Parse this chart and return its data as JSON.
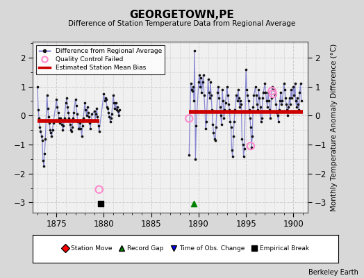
{
  "title": "GEORGETOWN,PE",
  "subtitle": "Difference of Station Temperature Data from Regional Average",
  "ylabel": "Monthly Temperature Anomaly Difference (°C)",
  "credit": "Berkeley Earth",
  "xlim": [
    1872.5,
    1901.5
  ],
  "ylim": [
    -3.35,
    2.55
  ],
  "yticks": [
    -3,
    -2,
    -1,
    0,
    1,
    2
  ],
  "xticks": [
    1875,
    1880,
    1885,
    1890,
    1895,
    1900
  ],
  "plot_bg": "#f0f0f0",
  "fig_bg": "#d8d8d8",
  "segment1_bias": -0.18,
  "segment1_x_start": 1873.0,
  "segment1_x_end": 1879.5,
  "segment2_bias": 0.12,
  "segment2_x_start": 1889.0,
  "segment2_x_end": 1901.0,
  "empirical_break_x": 1879.7,
  "empirical_break_y": -3.05,
  "record_gap_x": 1889.5,
  "record_gap_y": -3.05,
  "segment1_data": [
    [
      1873.0,
      1.0
    ],
    [
      1873.08,
      0.2
    ],
    [
      1873.17,
      -0.1
    ],
    [
      1873.25,
      -0.4
    ],
    [
      1873.33,
      -0.55
    ],
    [
      1873.42,
      -0.7
    ],
    [
      1873.5,
      -0.85
    ],
    [
      1873.58,
      -1.55
    ],
    [
      1873.67,
      -1.75
    ],
    [
      1873.75,
      -1.3
    ],
    [
      1873.83,
      -0.8
    ],
    [
      1874.0,
      0.7
    ],
    [
      1874.08,
      0.25
    ],
    [
      1874.17,
      -0.05
    ],
    [
      1874.25,
      -0.25
    ],
    [
      1874.33,
      -0.5
    ],
    [
      1874.42,
      -0.6
    ],
    [
      1874.5,
      -0.7
    ],
    [
      1874.58,
      -0.5
    ],
    [
      1874.67,
      -0.25
    ],
    [
      1875.0,
      0.55
    ],
    [
      1875.08,
      0.3
    ],
    [
      1875.17,
      0.1
    ],
    [
      1875.25,
      -0.1
    ],
    [
      1875.33,
      -0.25
    ],
    [
      1875.42,
      -0.1
    ],
    [
      1875.5,
      -0.15
    ],
    [
      1875.58,
      -0.3
    ],
    [
      1875.67,
      -0.5
    ],
    [
      1875.75,
      -0.35
    ],
    [
      1875.83,
      -0.1
    ],
    [
      1876.0,
      0.45
    ],
    [
      1876.08,
      0.6
    ],
    [
      1876.17,
      0.3
    ],
    [
      1876.25,
      0.1
    ],
    [
      1876.33,
      -0.1
    ],
    [
      1876.42,
      -0.3
    ],
    [
      1876.5,
      -0.5
    ],
    [
      1876.58,
      -0.55
    ],
    [
      1876.67,
      -0.4
    ],
    [
      1876.75,
      -0.1
    ],
    [
      1876.83,
      0.1
    ],
    [
      1877.0,
      0.55
    ],
    [
      1877.08,
      0.35
    ],
    [
      1877.17,
      0.05
    ],
    [
      1877.25,
      -0.2
    ],
    [
      1877.33,
      -0.45
    ],
    [
      1877.42,
      -0.45
    ],
    [
      1877.5,
      -0.25
    ],
    [
      1877.58,
      -0.45
    ],
    [
      1877.67,
      -0.7
    ],
    [
      1877.75,
      -0.35
    ],
    [
      1877.83,
      -0.1
    ],
    [
      1878.0,
      0.45
    ],
    [
      1878.08,
      0.2
    ],
    [
      1878.17,
      0.0
    ],
    [
      1878.25,
      0.3
    ],
    [
      1878.33,
      0.1
    ],
    [
      1878.42,
      -0.05
    ],
    [
      1878.5,
      -0.25
    ],
    [
      1878.58,
      -0.45
    ],
    [
      1878.67,
      -0.15
    ],
    [
      1878.75,
      0.05
    ],
    [
      1879.0,
      0.15
    ],
    [
      1879.08,
      -0.15
    ],
    [
      1879.17,
      0.05
    ],
    [
      1879.25,
      0.25
    ],
    [
      1879.33,
      -0.05
    ],
    [
      1879.42,
      -0.35
    ],
    [
      1879.5,
      -0.55
    ],
    [
      1880.0,
      0.75
    ],
    [
      1880.08,
      0.5
    ],
    [
      1880.17,
      0.6
    ],
    [
      1880.25,
      0.55
    ],
    [
      1880.33,
      0.3
    ],
    [
      1880.42,
      0.25
    ],
    [
      1880.5,
      0.1
    ],
    [
      1880.58,
      -0.05
    ],
    [
      1880.67,
      -0.2
    ],
    [
      1880.75,
      -0.1
    ],
    [
      1880.83,
      0.05
    ],
    [
      1881.0,
      0.7
    ],
    [
      1881.08,
      0.45
    ],
    [
      1881.17,
      0.25
    ],
    [
      1881.25,
      0.45
    ],
    [
      1881.33,
      0.2
    ],
    [
      1881.42,
      0.3
    ],
    [
      1881.5,
      0.15
    ],
    [
      1881.58,
      0.0
    ],
    [
      1881.67,
      0.2
    ]
  ],
  "segment2_data": [
    [
      1889.0,
      -1.35
    ],
    [
      1889.17,
      1.1
    ],
    [
      1889.25,
      0.9
    ],
    [
      1889.33,
      0.85
    ],
    [
      1889.42,
      1.0
    ],
    [
      1889.5,
      0.5
    ],
    [
      1889.58,
      2.25
    ],
    [
      1889.67,
      -1.5
    ],
    [
      1889.75,
      -0.35
    ],
    [
      1889.83,
      0.15
    ],
    [
      1890.0,
      1.15
    ],
    [
      1890.08,
      1.4
    ],
    [
      1890.17,
      1.0
    ],
    [
      1890.25,
      1.3
    ],
    [
      1890.33,
      0.8
    ],
    [
      1890.42,
      1.15
    ],
    [
      1890.5,
      1.4
    ],
    [
      1890.58,
      0.7
    ],
    [
      1890.67,
      0.15
    ],
    [
      1890.75,
      -0.45
    ],
    [
      1890.83,
      -0.2
    ],
    [
      1891.0,
      1.25
    ],
    [
      1891.08,
      0.8
    ],
    [
      1891.17,
      0.6
    ],
    [
      1891.25,
      1.15
    ],
    [
      1891.33,
      0.7
    ],
    [
      1891.42,
      0.2
    ],
    [
      1891.5,
      -0.3
    ],
    [
      1891.58,
      -0.6
    ],
    [
      1891.67,
      -0.8
    ],
    [
      1891.75,
      -0.85
    ],
    [
      1891.83,
      -0.4
    ],
    [
      1892.0,
      0.8
    ],
    [
      1892.08,
      1.0
    ],
    [
      1892.17,
      0.6
    ],
    [
      1892.25,
      0.3
    ],
    [
      1892.33,
      0.0
    ],
    [
      1892.42,
      -0.3
    ],
    [
      1892.5,
      0.9
    ],
    [
      1892.58,
      0.5
    ],
    [
      1892.67,
      -0.1
    ],
    [
      1892.75,
      0.2
    ],
    [
      1892.83,
      0.45
    ],
    [
      1893.0,
      1.0
    ],
    [
      1893.08,
      0.7
    ],
    [
      1893.17,
      0.4
    ],
    [
      1893.25,
      0.2
    ],
    [
      1893.33,
      -0.2
    ],
    [
      1893.42,
      -0.4
    ],
    [
      1893.5,
      -1.2
    ],
    [
      1893.58,
      -1.4
    ],
    [
      1893.67,
      -0.7
    ],
    [
      1893.75,
      -0.2
    ],
    [
      1893.83,
      0.2
    ],
    [
      1894.0,
      0.7
    ],
    [
      1894.08,
      0.5
    ],
    [
      1894.17,
      0.9
    ],
    [
      1894.25,
      0.6
    ],
    [
      1894.33,
      0.3
    ],
    [
      1894.42,
      0.5
    ],
    [
      1894.5,
      0.4
    ],
    [
      1894.58,
      -0.8
    ],
    [
      1894.67,
      -1.0
    ],
    [
      1894.75,
      -1.4
    ],
    [
      1894.83,
      -1.15
    ],
    [
      1895.0,
      1.6
    ],
    [
      1895.08,
      0.9
    ],
    [
      1895.17,
      0.7
    ],
    [
      1895.25,
      0.5
    ],
    [
      1895.33,
      0.2
    ],
    [
      1895.42,
      -0.1
    ],
    [
      1895.5,
      -0.4
    ],
    [
      1895.58,
      -1.1
    ],
    [
      1895.67,
      -0.7
    ],
    [
      1895.75,
      0.3
    ],
    [
      1895.83,
      0.7
    ],
    [
      1896.0,
      1.0
    ],
    [
      1896.08,
      0.7
    ],
    [
      1896.17,
      0.4
    ],
    [
      1896.25,
      0.2
    ],
    [
      1896.33,
      0.9
    ],
    [
      1896.42,
      0.6
    ],
    [
      1896.5,
      0.3
    ],
    [
      1896.58,
      -0.2
    ],
    [
      1896.67,
      -0.1
    ],
    [
      1896.75,
      0.6
    ],
    [
      1896.83,
      0.8
    ],
    [
      1897.0,
      1.1
    ],
    [
      1897.08,
      0.8
    ],
    [
      1897.17,
      0.5
    ],
    [
      1897.25,
      0.3
    ],
    [
      1897.33,
      0.8
    ],
    [
      1897.42,
      0.5
    ],
    [
      1897.5,
      0.2
    ],
    [
      1897.58,
      -0.1
    ],
    [
      1897.67,
      0.6
    ],
    [
      1897.75,
      1.0
    ],
    [
      1897.83,
      0.9
    ],
    [
      1898.0,
      0.9
    ],
    [
      1898.08,
      0.7
    ],
    [
      1898.17,
      0.4
    ],
    [
      1898.25,
      0.1
    ],
    [
      1898.33,
      0.0
    ],
    [
      1898.42,
      -0.2
    ],
    [
      1898.5,
      0.2
    ],
    [
      1898.58,
      0.5
    ],
    [
      1898.67,
      0.8
    ],
    [
      1898.75,
      0.4
    ],
    [
      1898.83,
      0.5
    ],
    [
      1899.0,
      1.1
    ],
    [
      1899.08,
      0.9
    ],
    [
      1899.17,
      0.6
    ],
    [
      1899.25,
      0.4
    ],
    [
      1899.33,
      0.2
    ],
    [
      1899.42,
      0.0
    ],
    [
      1899.5,
      0.3
    ],
    [
      1899.58,
      0.6
    ],
    [
      1899.67,
      0.4
    ],
    [
      1899.75,
      0.9
    ],
    [
      1899.83,
      0.6
    ],
    [
      1900.0,
      1.0
    ],
    [
      1900.08,
      0.7
    ],
    [
      1900.17,
      1.1
    ],
    [
      1900.25,
      0.5
    ],
    [
      1900.33,
      0.3
    ],
    [
      1900.42,
      0.6
    ],
    [
      1900.5,
      0.4
    ],
    [
      1900.58,
      0.2
    ],
    [
      1900.67,
      0.8
    ],
    [
      1900.75,
      1.1
    ],
    [
      1900.83,
      0.5
    ]
  ],
  "qc_points": [
    [
      1879.5,
      -2.55
    ],
    [
      1889.0,
      -0.1
    ],
    [
      1895.5,
      -1.05
    ],
    [
      1897.75,
      0.85
    ],
    [
      1897.83,
      0.75
    ]
  ],
  "line_color": "#3333bb",
  "line_alpha": 0.55,
  "marker_color": "#111111",
  "bias_color": "#cc0000",
  "bias_lw": 4.0,
  "qc_color": "#ff88cc",
  "qc_size": 55,
  "qc_lw": 1.5
}
